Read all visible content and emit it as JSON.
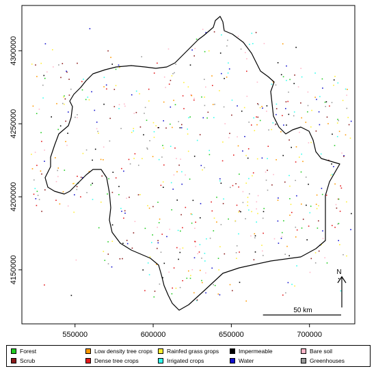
{
  "map": {
    "x_ticks": [
      "550000",
      "600000",
      "650000",
      "700000"
    ],
    "x_values": [
      550000,
      600000,
      650000,
      700000
    ],
    "y_ticks": [
      "4150000",
      "4200000",
      "4250000",
      "4300000"
    ],
    "y_values": [
      4150000,
      4200000,
      4250000,
      4300000
    ],
    "xlim": [
      516000,
      729000
    ],
    "ylim": [
      4113000,
      4331000
    ],
    "north_label": "N",
    "scale_label": "50 km",
    "scale_km": 50,
    "boundary_color": "#000000"
  },
  "legend": {
    "items": [
      {
        "label": "Forest",
        "color": "#22cc22"
      },
      {
        "label": "Scrub",
        "color": "#8b1a1a"
      },
      {
        "label": "Low density tree crops",
        "color": "#ff9900"
      },
      {
        "label": "Dense tree crops",
        "color": "#e31a1c"
      },
      {
        "label": "Rainfed grass grops",
        "color": "#ffee33"
      },
      {
        "label": "Irrigated crops",
        "color": "#33ffee"
      },
      {
        "label": "Impermeable",
        "color": "#000000"
      },
      {
        "label": "Water",
        "color": "#1010cc"
      },
      {
        "label": "Bare soil",
        "color": "#ffb6c8"
      },
      {
        "label": "Greenhouses",
        "color": "#999999"
      }
    ]
  }
}
